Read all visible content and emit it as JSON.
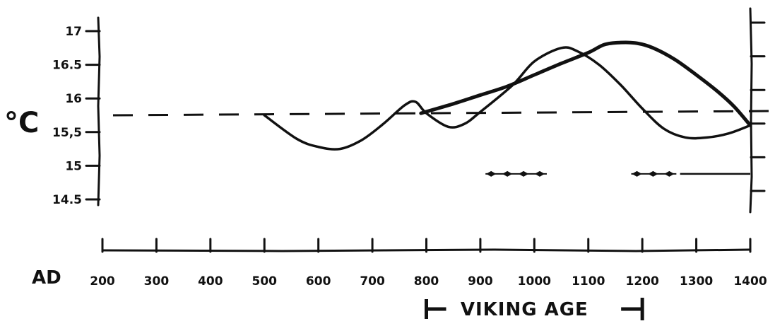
{
  "chart_data": {
    "type": "line",
    "ylabel": "°C",
    "yticks": [
      "17",
      "16.5",
      "16",
      "15,5",
      "15",
      "14.5"
    ],
    "ytick_values": [
      17,
      16.5,
      16,
      15.5,
      15,
      14.5
    ],
    "ylim": [
      14.3,
      17.05
    ],
    "xlabel_prefix": "AD",
    "xticks": [
      "200",
      "300",
      "400",
      "500",
      "600",
      "700",
      "800",
      "900",
      "1000",
      "1100",
      "1200",
      "1300",
      "1400"
    ],
    "xtick_values": [
      200,
      300,
      400,
      500,
      600,
      700,
      800,
      900,
      1000,
      1100,
      1200,
      1300,
      1400
    ],
    "xlim": [
      200,
      1400
    ],
    "reference_line": {
      "y": 15.75,
      "style": "dashed"
    },
    "series": [
      {
        "x": [
          500,
          560,
          600,
          640,
          680,
          720,
          760,
          780,
          800,
          840,
          870,
          900,
          960,
          1000,
          1050,
          1080,
          1120,
          1160,
          1200,
          1240,
          1280,
          1320,
          1360,
          1400
        ],
        "y": [
          15.75,
          15.4,
          15.28,
          15.25,
          15.38,
          15.62,
          15.9,
          15.95,
          15.78,
          15.58,
          15.62,
          15.8,
          16.2,
          16.55,
          16.75,
          16.7,
          16.5,
          16.2,
          15.85,
          15.55,
          15.42,
          15.42,
          15.48,
          15.6
        ]
      },
      {
        "x": [
          790,
          850,
          900,
          950,
          1000,
          1050,
          1100,
          1130,
          1160,
          1190,
          1220,
          1260,
          1300,
          1340,
          1370,
          1400
        ],
        "y": [
          15.78,
          15.92,
          16.05,
          16.18,
          16.35,
          16.52,
          16.68,
          16.8,
          16.83,
          16.82,
          16.75,
          16.58,
          16.35,
          16.1,
          15.88,
          15.6
        ]
      }
    ],
    "dotted_markers": [
      {
        "x": [
          920,
          950,
          980,
          1010
        ],
        "y": 14.88
      },
      {
        "x": [
          1190,
          1220,
          1250
        ],
        "y": 14.88
      }
    ],
    "span_line": {
      "x_start": 1270,
      "x_end": 1400,
      "y": 14.88
    },
    "bracket": {
      "label": "VIKING AGE",
      "x_start": 800,
      "x_end": 1200
    }
  }
}
